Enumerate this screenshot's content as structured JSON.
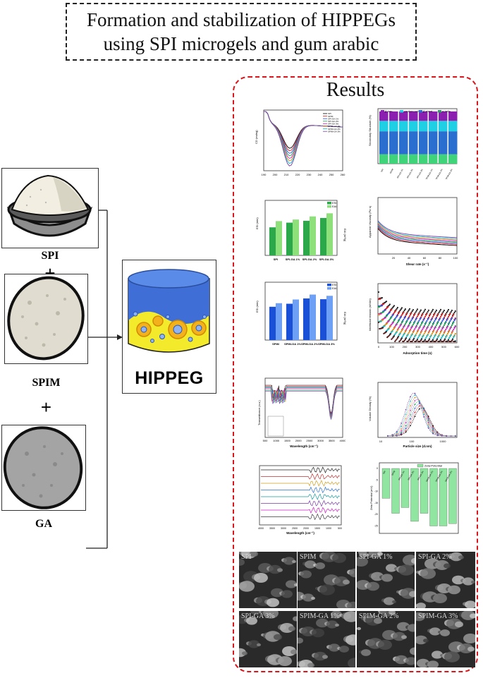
{
  "title": {
    "line1": "Formation and stabilization of HIPPEGs",
    "line2": "using SPI microgels and gum arabic"
  },
  "left_column": {
    "spi_label": "SPI",
    "spim_label": "SPIM",
    "ga_label": "GA",
    "plus_symbol": "+",
    "hippeg_label": "HIPPEG"
  },
  "results": {
    "title": "Results",
    "cd": {
      "ylabel": "CD (mdeg)",
      "xticks": [
        "190",
        "200",
        "210",
        "220",
        "230",
        "240",
        "250",
        "260"
      ],
      "legend": [
        "SPI",
        "SPIM",
        "SPI-GA 1%",
        "SPI-GA 2%",
        "SPI-GA 3%",
        "SPIM-GA 1%",
        "SPIM-GA 2%",
        "SPIM-GA 3%"
      ]
    },
    "secondary": {
      "ylabel": "Secondary Structure (%)",
      "legend": [
        "β-turn",
        "random coil",
        "β-sheet",
        "α-helix"
      ],
      "categories": [
        "SPI",
        "SPIM",
        "SPI-GA 1%",
        "SPI-GA 2%",
        "SPI-GA 3%",
        "SPIM-GA 1%",
        "SPIM-GA 2%",
        "SPIM-GA 3%"
      ]
    },
    "esi_spi": {
      "ylabel": "ESI (min)",
      "y2label": "EAI (m²/g)",
      "legend": [
        "ESI",
        "EAI"
      ],
      "categories": [
        "SPI",
        "SPI-GA 1%",
        "SPI-GA 2%",
        "SPI-GA 3%"
      ],
      "esi": [
        60,
        70,
        74,
        80
      ],
      "eai": [
        22,
        23,
        25,
        27
      ]
    },
    "viscosity": {
      "ylabel": "Apparent Viscosity (Pa·s)",
      "xlabel": "Shear rate (s⁻¹)",
      "xticks": [
        "20",
        "40",
        "60",
        "80",
        "100"
      ]
    },
    "esi_spim": {
      "ylabel": "ESI (min)",
      "y2label": "EAI (m²/g)",
      "legend": [
        "ESI",
        "EAI"
      ],
      "categories": [
        "SPIM",
        "SPIM-GA 1%",
        "SPIM-GA 2%",
        "SPIM-GA 3%"
      ],
      "esi": [
        88,
        96,
        110,
        108
      ],
      "eai": [
        30,
        33,
        37,
        36
      ]
    },
    "tension": {
      "ylabel": "Interfacial tension (mN/m)",
      "xlabel": "Adsorption time (s)",
      "xticks": [
        "0",
        "100",
        "200",
        "300",
        "400",
        "500",
        "600"
      ]
    },
    "ftir1": {
      "ylabel": "Transmittance (a.u.)",
      "xlabel": "Wavelength (cm⁻¹)",
      "xticks": [
        "500",
        "1000",
        "1500",
        "2000",
        "2500",
        "3000",
        "3500",
        "4000"
      ]
    },
    "psd": {
      "ylabel": "Volume Density (%)",
      "xlabel": "Particle size (d.nm)",
      "xticks": [
        "10",
        "100",
        "1000"
      ]
    },
    "ftir2": {
      "xlabel": "Wavelength (cm⁻¹)",
      "xticks": [
        "4000",
        "3500",
        "3000",
        "2500",
        "2000",
        "1500",
        "1000",
        "500"
      ]
    },
    "zeta": {
      "ylabel": "Zeta Potential (mV)",
      "legend": [
        "Zeta-Potential"
      ],
      "categories": [
        "SPI",
        "SPIM",
        "SPI-GA 1%",
        "SPI-GA 2%",
        "SPI-GA 3%",
        "SPIM-GA 1%",
        "SPIM-GA 2%",
        "SPIM-GA 3%"
      ],
      "values": [
        -13,
        -19.5,
        -17,
        -23,
        -19.5,
        -25,
        -25,
        -24
      ],
      "yticks": [
        "0",
        "-5",
        "-10",
        "-15",
        "-20",
        "-25"
      ]
    },
    "sem_labels": [
      "SPI",
      "SPIM",
      "SPI-GA 1%",
      "SPI-GA 2%",
      "SPI-GA 3%",
      "SPIM-GA 1%",
      "SPIM-GA 2%",
      "SPIM-GA 3%"
    ]
  }
}
